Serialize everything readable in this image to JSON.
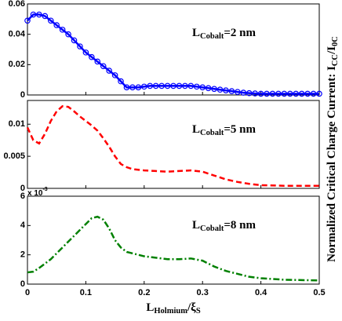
{
  "chart_data": [
    {
      "type": "line",
      "annotation_parts": [
        "L",
        "Cobalt",
        "=2 nm"
      ],
      "ylabel_parts": [
        "Normalized Critical Charge Current: I",
        "CC",
        "/I",
        "0C"
      ],
      "x": [
        0,
        0.01,
        0.02,
        0.03,
        0.04,
        0.05,
        0.06,
        0.07,
        0.08,
        0.09,
        0.1,
        0.11,
        0.12,
        0.13,
        0.14,
        0.15,
        0.16,
        0.17,
        0.18,
        0.19,
        0.2,
        0.21,
        0.22,
        0.23,
        0.24,
        0.25,
        0.26,
        0.27,
        0.28,
        0.29,
        0.3,
        0.31,
        0.32,
        0.33,
        0.34,
        0.35,
        0.36,
        0.37,
        0.38,
        0.39,
        0.4,
        0.41,
        0.42,
        0.43,
        0.44,
        0.45,
        0.46,
        0.47,
        0.48,
        0.49,
        0.5
      ],
      "series": [
        {
          "color": "#0000ff",
          "dash": "solid",
          "marker": "circle",
          "values": [
            0.049,
            0.053,
            0.053,
            0.052,
            0.049,
            0.046,
            0.043,
            0.04,
            0.036,
            0.032,
            0.028,
            0.025,
            0.022,
            0.019,
            0.016,
            0.013,
            0.009,
            0.005,
            0.005,
            0.005,
            0.0055,
            0.006,
            0.006,
            0.006,
            0.006,
            0.006,
            0.006,
            0.006,
            0.006,
            0.0055,
            0.005,
            0.0045,
            0.004,
            0.0035,
            0.003,
            0.0025,
            0.002,
            0.0015,
            0.0012,
            0.001,
            0.0008,
            0.0008,
            0.0008,
            0.0008,
            0.0008,
            0.0008,
            0.0008,
            0.0008,
            0.0008,
            0.0008,
            0.0008
          ]
        }
      ],
      "xlim": [
        0,
        0.5
      ],
      "xticks": [
        0,
        0.1,
        0.2,
        0.3,
        0.4,
        0.5
      ],
      "show_xtick_labels": false,
      "ylim": [
        0,
        0.06
      ],
      "yticks": [
        0,
        0.02,
        0.04,
        0.06
      ]
    },
    {
      "type": "line",
      "annotation_parts": [
        "L",
        "Cobalt",
        "=5 nm"
      ],
      "x": [
        0,
        0.01,
        0.02,
        0.03,
        0.04,
        0.05,
        0.06,
        0.07,
        0.08,
        0.09,
        0.1,
        0.11,
        0.12,
        0.13,
        0.14,
        0.15,
        0.16,
        0.17,
        0.18,
        0.2,
        0.22,
        0.24,
        0.26,
        0.28,
        0.3,
        0.32,
        0.34,
        0.36,
        0.38,
        0.4,
        0.44,
        0.5
      ],
      "series": [
        {
          "color": "#ff0000",
          "dash": "dashed",
          "values": [
            0.0095,
            0.0075,
            0.007,
            0.0085,
            0.0105,
            0.012,
            0.0128,
            0.0127,
            0.012,
            0.0112,
            0.0105,
            0.0098,
            0.009,
            0.0078,
            0.0065,
            0.005,
            0.0038,
            0.0033,
            0.003,
            0.0028,
            0.0027,
            0.0026,
            0.0027,
            0.0028,
            0.0026,
            0.002,
            0.0014,
            0.001,
            0.0007,
            0.0005,
            0.0004,
            0.0004
          ]
        }
      ],
      "xlim": [
        0,
        0.5
      ],
      "xticks": [
        0,
        0.1,
        0.2,
        0.3,
        0.4,
        0.5
      ],
      "show_xtick_labels": false,
      "ylim": [
        0,
        0.0137
      ],
      "yticks": [
        0,
        0.005,
        0.01
      ]
    },
    {
      "type": "line",
      "annotation_parts": [
        "L",
        "Cobalt",
        "=8 nm"
      ],
      "xlabel_parts": [
        "L",
        "Holmium",
        "/ξ",
        "S"
      ],
      "offset_parts": [
        "x 10",
        "-3"
      ],
      "x": [
        0,
        0.01,
        0.02,
        0.04,
        0.06,
        0.08,
        0.1,
        0.11,
        0.12,
        0.13,
        0.14,
        0.15,
        0.16,
        0.17,
        0.18,
        0.2,
        0.22,
        0.24,
        0.26,
        0.28,
        0.3,
        0.32,
        0.34,
        0.36,
        0.38,
        0.4,
        0.44,
        0.5
      ],
      "series": [
        {
          "color": "#008000",
          "dash": "dashdot",
          "values": [
            0.8,
            0.85,
            1.1,
            1.7,
            2.5,
            3.3,
            4.1,
            4.5,
            4.6,
            4.4,
            3.8,
            3.0,
            2.5,
            2.2,
            2.1,
            1.9,
            1.8,
            1.7,
            1.7,
            1.75,
            1.6,
            1.2,
            0.9,
            0.7,
            0.5,
            0.4,
            0.3,
            0.25
          ]
        }
      ],
      "xlim": [
        0,
        0.5
      ],
      "xticks": [
        0,
        0.1,
        0.2,
        0.3,
        0.4,
        0.5
      ],
      "show_xtick_labels": true,
      "ylim": [
        0,
        6
      ],
      "yticks": [
        0,
        2,
        4,
        6
      ]
    }
  ]
}
